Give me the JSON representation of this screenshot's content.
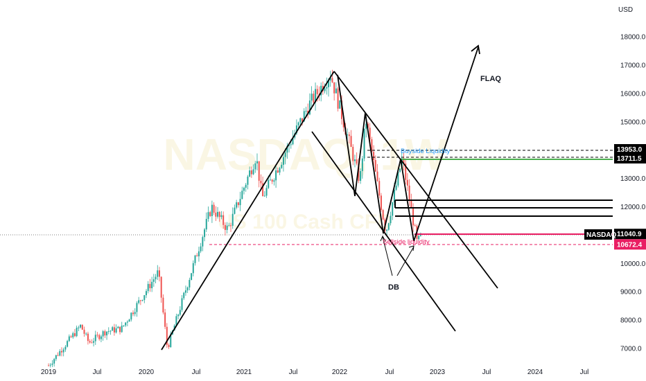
{
  "chart_data": {
    "type": "candlestick",
    "symbol": "NASDAQ",
    "currency": "USD",
    "watermark": {
      "line1": "NASDAQ, 1W",
      "line2": "US 100 Cash CFD"
    },
    "x_ticks": [
      "2019",
      "Jul",
      "2020",
      "Jul",
      "2021",
      "Jul",
      "2022",
      "Jul",
      "2023",
      "Jul",
      "2024",
      "Jul"
    ],
    "y_ticks": [
      "7000.0",
      "8000.0",
      "9000.0",
      "10000.0",
      "11000.0",
      "12000.0",
      "13000.0",
      "14000.0",
      "15000.0",
      "16000.0",
      "17000.0",
      "18000.0"
    ],
    "ylim": [
      6700,
      18800
    ],
    "price_tags": [
      {
        "label": "13953.0",
        "value": 13953.0,
        "bg": "#000000"
      },
      {
        "label": "13711.5",
        "value": 13711.5,
        "bg": "#000000"
      },
      {
        "label": "11040.9",
        "value": 11040.9,
        "bg": "#000000"
      },
      {
        "label": "10672.4",
        "value": 10672.4,
        "bg": "#e91e63"
      }
    ],
    "symbol_tag": "NASDAQ",
    "annotations": {
      "buyside": "Buyside Liquidity",
      "sellside": "Sellside liquidity",
      "db": "DB",
      "flag": "FLAQ"
    },
    "key_prices": [
      {
        "date": "2019-01-01",
        "close": 6400
      },
      {
        "date": "2019-05-01",
        "close": 7800
      },
      {
        "date": "2019-06-01",
        "close": 7200
      },
      {
        "date": "2019-08-01",
        "close": 7600
      },
      {
        "date": "2019-10-01",
        "close": 7700
      },
      {
        "date": "2020-02-15",
        "close": 9700
      },
      {
        "date": "2020-03-20",
        "close": 7000
      },
      {
        "date": "2020-09-01",
        "close": 12000
      },
      {
        "date": "2020-11-01",
        "close": 11200
      },
      {
        "date": "2021-02-15",
        "close": 13800
      },
      {
        "date": "2021-03-10",
        "close": 12300
      },
      {
        "date": "2021-09-01",
        "close": 15600
      },
      {
        "date": "2021-11-20",
        "close": 16700
      },
      {
        "date": "2022-03-10",
        "close": 12900
      },
      {
        "date": "2022-04-01",
        "close": 15100
      },
      {
        "date": "2022-06-15",
        "close": 11100
      },
      {
        "date": "2022-08-15",
        "close": 13700
      },
      {
        "date": "2022-10-10",
        "close": 10700
      },
      {
        "date": "2022-10-28",
        "close": 11040.9
      }
    ],
    "colors": {
      "up": "#26a69a",
      "down": "#ef5350",
      "green_line": "#4caf50",
      "red_line": "#e91e63",
      "blue_text": "#2196f3"
    }
  }
}
